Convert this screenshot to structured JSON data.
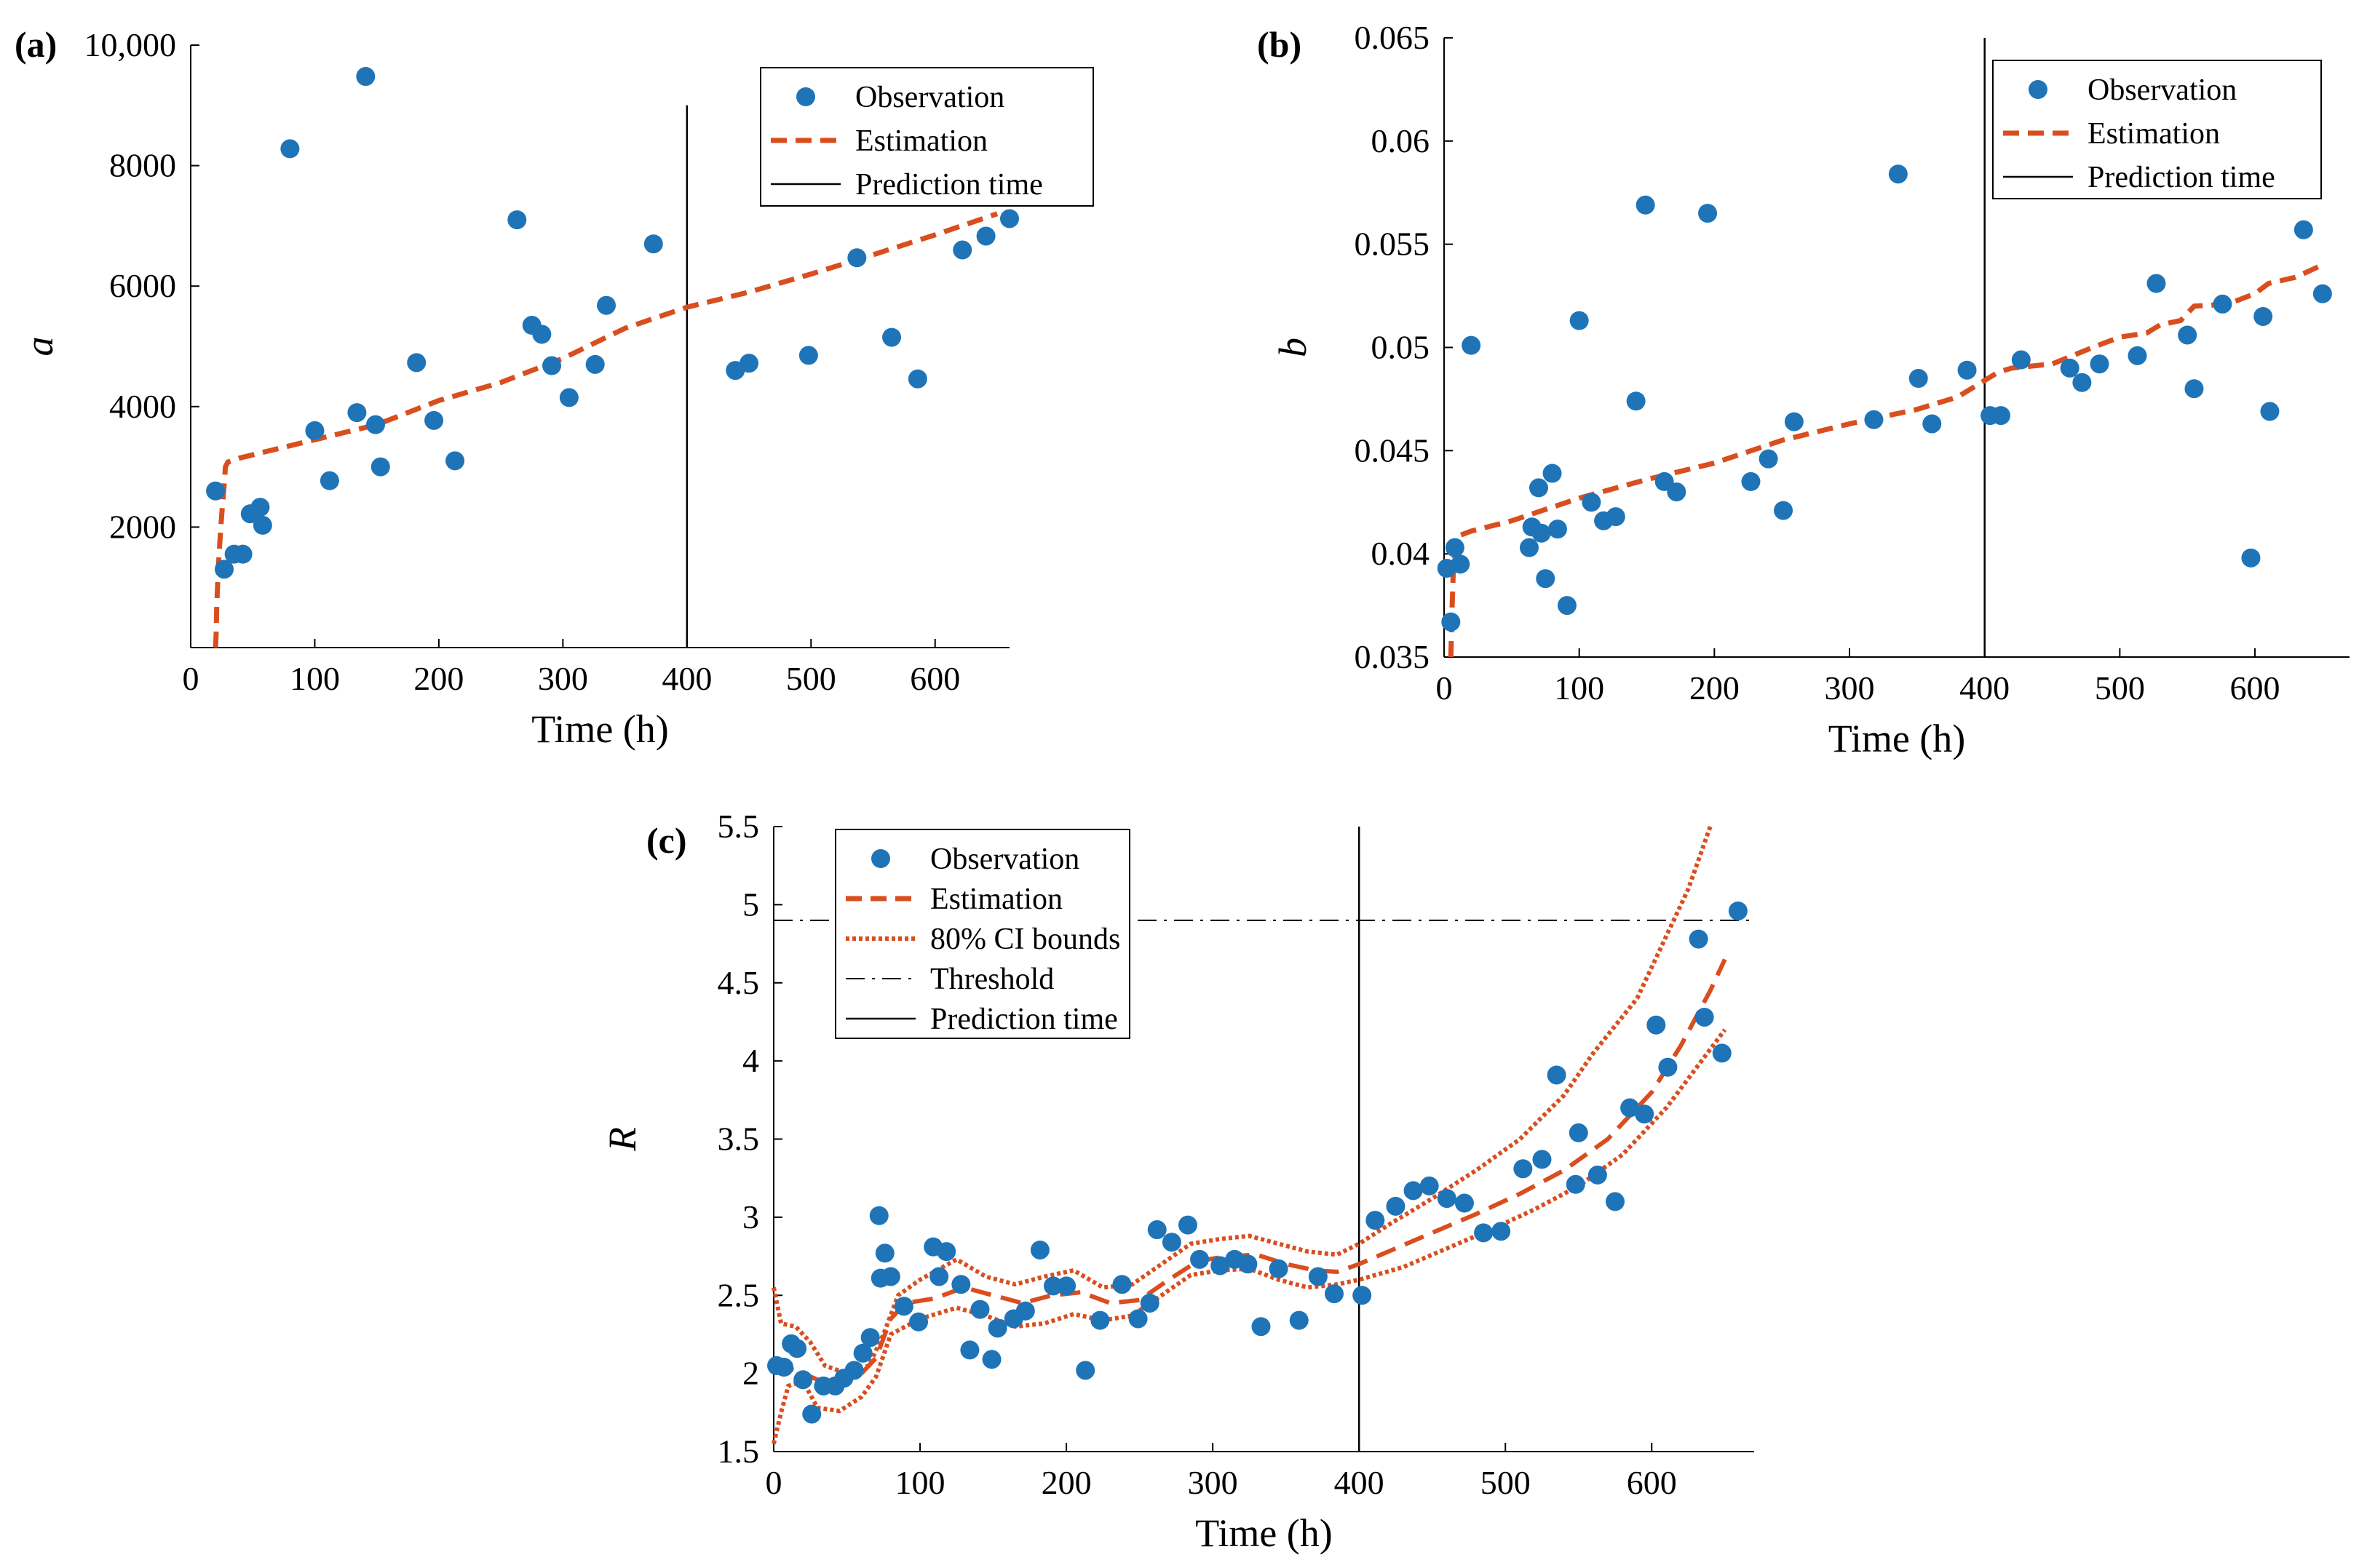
{
  "colors": {
    "observation": "#1f74b8",
    "estimation": "#d94e1f",
    "line": "#000000"
  },
  "chart_data": [
    {
      "panel": "(a)",
      "type": "scatter",
      "xlabel": "Time (h)",
      "ylabel": "a",
      "xlim": [
        0,
        660
      ],
      "ylim": [
        0,
        10000
      ],
      "xticks": [
        0,
        100,
        200,
        300,
        400,
        500,
        600
      ],
      "yticks": [
        2000,
        4000,
        6000,
        8000,
        10000
      ],
      "ytick_labels": [
        "2000",
        "4000",
        "6000",
        "8000",
        "10,000"
      ],
      "legend": [
        "Observation",
        "Estimation",
        "Prediction time"
      ],
      "prediction_time": 400,
      "prediction_line_top": 9000,
      "observations": [
        [
          20,
          2600
        ],
        [
          27,
          1300
        ],
        [
          35,
          1550
        ],
        [
          42,
          1550
        ],
        [
          48,
          2220
        ],
        [
          56,
          2330
        ],
        [
          58,
          2030
        ],
        [
          80,
          8280
        ],
        [
          100,
          3600
        ],
        [
          112,
          2770
        ],
        [
          134,
          3900
        ],
        [
          141,
          9480
        ],
        [
          149,
          3700
        ],
        [
          153,
          3000
        ],
        [
          182,
          4730
        ],
        [
          196,
          3770
        ],
        [
          213,
          3100
        ],
        [
          263,
          7100
        ],
        [
          275,
          5350
        ],
        [
          283,
          5200
        ],
        [
          291,
          4680
        ],
        [
          305,
          4150
        ],
        [
          326,
          4700
        ],
        [
          335,
          5680
        ],
        [
          373,
          6700
        ],
        [
          439,
          4600
        ],
        [
          450,
          4720
        ],
        [
          498,
          4850
        ],
        [
          537,
          6470
        ],
        [
          565,
          5150
        ],
        [
          586,
          4460
        ],
        [
          622,
          6600
        ],
        [
          641,
          6830
        ],
        [
          660,
          7120
        ]
      ],
      "estimation": [
        [
          20,
          0
        ],
        [
          20.5,
          200
        ],
        [
          21,
          700
        ],
        [
          22,
          1200
        ],
        [
          23,
          1600
        ],
        [
          25,
          2200
        ],
        [
          27,
          2700
        ],
        [
          28,
          3000
        ],
        [
          30,
          3080
        ],
        [
          40,
          3150
        ],
        [
          60,
          3250
        ],
        [
          80,
          3350
        ],
        [
          100,
          3450
        ],
        [
          150,
          3700
        ],
        [
          200,
          4100
        ],
        [
          250,
          4400
        ],
        [
          300,
          4800
        ],
        [
          350,
          5300
        ],
        [
          400,
          5650
        ],
        [
          450,
          5900
        ],
        [
          500,
          6200
        ],
        [
          550,
          6520
        ],
        [
          600,
          6850
        ],
        [
          650,
          7200
        ]
      ]
    },
    {
      "panel": "(b)",
      "type": "scatter",
      "xlabel": "Time (h)",
      "ylabel": "b",
      "xlim": [
        0,
        670
      ],
      "ylim": [
        0.035,
        0.065
      ],
      "xticks": [
        0,
        100,
        200,
        300,
        400,
        500,
        600
      ],
      "yticks": [
        0.035,
        0.04,
        0.045,
        0.05,
        0.055,
        0.06,
        0.065
      ],
      "ytick_labels": [
        "0.035",
        "0.04",
        "0.045",
        "0.05",
        "0.055",
        "0.06",
        "0.065"
      ],
      "legend": [
        "Observation",
        "Estimation",
        "Prediction time"
      ],
      "prediction_time": 400,
      "prediction_line_top": 0.065,
      "observations": [
        [
          2,
          0.0393
        ],
        [
          5,
          0.0367
        ],
        [
          8,
          0.0403
        ],
        [
          12,
          0.0395
        ],
        [
          20,
          0.0501
        ],
        [
          63,
          0.0403
        ],
        [
          65,
          0.0413
        ],
        [
          70,
          0.0432
        ],
        [
          72,
          0.041
        ],
        [
          75,
          0.0388
        ],
        [
          80,
          0.0439
        ],
        [
          84,
          0.0412
        ],
        [
          91,
          0.0375
        ],
        [
          100,
          0.0513
        ],
        [
          109,
          0.0425
        ],
        [
          118,
          0.0416
        ],
        [
          127,
          0.0418
        ],
        [
          142,
          0.0474
        ],
        [
          149,
          0.0569
        ],
        [
          163,
          0.0435
        ],
        [
          172,
          0.043
        ],
        [
          195,
          0.0565
        ],
        [
          227,
          0.0435
        ],
        [
          240,
          0.0446
        ],
        [
          251,
          0.0421
        ],
        [
          259,
          0.0464
        ],
        [
          318,
          0.0465
        ],
        [
          336,
          0.0584
        ],
        [
          351,
          0.0485
        ],
        [
          361,
          0.0463
        ],
        [
          387,
          0.0489
        ],
        [
          404,
          0.0467
        ],
        [
          412,
          0.0467
        ],
        [
          427,
          0.0494
        ],
        [
          463,
          0.049
        ],
        [
          472,
          0.0483
        ],
        [
          485,
          0.0492
        ],
        [
          513,
          0.0496
        ],
        [
          527,
          0.0531
        ],
        [
          550,
          0.0506
        ],
        [
          555,
          0.048
        ],
        [
          576,
          0.0521
        ],
        [
          597,
          0.0398
        ],
        [
          606,
          0.0515
        ],
        [
          611,
          0.0469
        ],
        [
          636,
          0.0557
        ],
        [
          650,
          0.0526
        ]
      ],
      "estimation": [
        [
          5,
          0.035
        ],
        [
          6,
          0.0375
        ],
        [
          7,
          0.0395
        ],
        [
          9,
          0.0405
        ],
        [
          12,
          0.0409
        ],
        [
          20,
          0.0411
        ],
        [
          50,
          0.0416
        ],
        [
          100,
          0.0427
        ],
        [
          150,
          0.0436
        ],
        [
          200,
          0.0444
        ],
        [
          250,
          0.0455
        ],
        [
          300,
          0.0463
        ],
        [
          350,
          0.047
        ],
        [
          380,
          0.0476
        ],
        [
          400,
          0.0484
        ],
        [
          410,
          0.0488
        ],
        [
          420,
          0.049
        ],
        [
          450,
          0.0492
        ],
        [
          480,
          0.05
        ],
        [
          500,
          0.0505
        ],
        [
          520,
          0.0507
        ],
        [
          530,
          0.0511
        ],
        [
          545,
          0.0513
        ],
        [
          555,
          0.052
        ],
        [
          580,
          0.0521
        ],
        [
          600,
          0.0526
        ],
        [
          610,
          0.0531
        ],
        [
          630,
          0.0534
        ],
        [
          650,
          0.054
        ]
      ]
    },
    {
      "panel": "(c)",
      "type": "scatter",
      "xlabel": "Time (h)",
      "ylabel": "R",
      "xlim": [
        0,
        670
      ],
      "ylim": [
        1.5,
        5.5
      ],
      "xticks": [
        0,
        100,
        200,
        300,
        400,
        500,
        600
      ],
      "yticks": [
        1.5,
        2,
        2.5,
        3,
        3.5,
        4,
        4.5,
        5,
        5.5
      ],
      "ytick_labels": [
        "1.5",
        "2",
        "2.5",
        "3",
        "3.5",
        "4",
        "4.5",
        "5",
        "5.5"
      ],
      "legend": [
        "Observation",
        "Estimation",
        "80% CI bounds",
        "Threshold",
        "Prediction time"
      ],
      "prediction_time": 400,
      "threshold": 4.9,
      "observations": [
        [
          2,
          2.05
        ],
        [
          7,
          2.04
        ],
        [
          12,
          2.19
        ],
        [
          16,
          2.16
        ],
        [
          20,
          1.96
        ],
        [
          26,
          1.74
        ],
        [
          34,
          1.92
        ],
        [
          42,
          1.92
        ],
        [
          48,
          1.97
        ],
        [
          55,
          2.02
        ],
        [
          61,
          2.13
        ],
        [
          66,
          2.23
        ],
        [
          72,
          3.01
        ],
        [
          73,
          2.61
        ],
        [
          76,
          2.77
        ],
        [
          80,
          2.62
        ],
        [
          89,
          2.43
        ],
        [
          99,
          2.33
        ],
        [
          109,
          2.81
        ],
        [
          113,
          2.62
        ],
        [
          118,
          2.78
        ],
        [
          128,
          2.57
        ],
        [
          134,
          2.15
        ],
        [
          141,
          2.41
        ],
        [
          149,
          2.09
        ],
        [
          153,
          2.29
        ],
        [
          164,
          2.35
        ],
        [
          172,
          2.4
        ],
        [
          182,
          2.79
        ],
        [
          191,
          2.56
        ],
        [
          200,
          2.56
        ],
        [
          213,
          2.02
        ],
        [
          223,
          2.34
        ],
        [
          238,
          2.57
        ],
        [
          249,
          2.35
        ],
        [
          257,
          2.45
        ],
        [
          262,
          2.92
        ],
        [
          272,
          2.84
        ],
        [
          283,
          2.95
        ],
        [
          291,
          2.73
        ],
        [
          305,
          2.69
        ],
        [
          315,
          2.73
        ],
        [
          324,
          2.7
        ],
        [
          333,
          2.3
        ],
        [
          345,
          2.67
        ],
        [
          359,
          2.34
        ],
        [
          372,
          2.62
        ],
        [
          383,
          2.51
        ],
        [
          402,
          2.5
        ],
        [
          411,
          2.98
        ],
        [
          425,
          3.07
        ],
        [
          437,
          3.17
        ],
        [
          448,
          3.2
        ],
        [
          460,
          3.12
        ],
        [
          472,
          3.09
        ],
        [
          485,
          2.9
        ],
        [
          497,
          2.91
        ],
        [
          512,
          3.31
        ],
        [
          525,
          3.37
        ],
        [
          535,
          3.91
        ],
        [
          548,
          3.21
        ],
        [
          550,
          3.54
        ],
        [
          563,
          3.27
        ],
        [
          575,
          3.1
        ],
        [
          585,
          3.7
        ],
        [
          595,
          3.66
        ],
        [
          603,
          4.23
        ],
        [
          611,
          3.96
        ],
        [
          632,
          4.78
        ],
        [
          636,
          4.28
        ],
        [
          648,
          4.05
        ],
        [
          659,
          4.96
        ]
      ],
      "estimation": [
        [
          0,
          2.05
        ],
        [
          15,
          2.02
        ],
        [
          30,
          1.96
        ],
        [
          45,
          1.95
        ],
        [
          60,
          2.0
        ],
        [
          70,
          2.1
        ],
        [
          80,
          2.35
        ],
        [
          90,
          2.45
        ],
        [
          110,
          2.48
        ],
        [
          130,
          2.55
        ],
        [
          150,
          2.5
        ],
        [
          170,
          2.45
        ],
        [
          190,
          2.5
        ],
        [
          210,
          2.52
        ],
        [
          230,
          2.45
        ],
        [
          250,
          2.47
        ],
        [
          270,
          2.6
        ],
        [
          290,
          2.72
        ],
        [
          310,
          2.75
        ],
        [
          330,
          2.76
        ],
        [
          350,
          2.7
        ],
        [
          370,
          2.66
        ],
        [
          385,
          2.65
        ],
        [
          400,
          2.7
        ],
        [
          420,
          2.78
        ],
        [
          450,
          2.9
        ],
        [
          480,
          3.02
        ],
        [
          510,
          3.15
        ],
        [
          540,
          3.3
        ],
        [
          570,
          3.5
        ],
        [
          600,
          3.8
        ],
        [
          620,
          4.1
        ],
        [
          640,
          4.45
        ],
        [
          650,
          4.65
        ]
      ],
      "ci_upper": [
        [
          0,
          2.55
        ],
        [
          5,
          2.32
        ],
        [
          15,
          2.3
        ],
        [
          25,
          2.2
        ],
        [
          35,
          2.05
        ],
        [
          50,
          2.0
        ],
        [
          65,
          2.05
        ],
        [
          75,
          2.25
        ],
        [
          85,
          2.5
        ],
        [
          100,
          2.6
        ],
        [
          125,
          2.73
        ],
        [
          145,
          2.62
        ],
        [
          165,
          2.57
        ],
        [
          185,
          2.62
        ],
        [
          205,
          2.66
        ],
        [
          225,
          2.55
        ],
        [
          245,
          2.57
        ],
        [
          265,
          2.7
        ],
        [
          285,
          2.83
        ],
        [
          305,
          2.86
        ],
        [
          325,
          2.88
        ],
        [
          345,
          2.83
        ],
        [
          365,
          2.78
        ],
        [
          385,
          2.76
        ],
        [
          400,
          2.83
        ],
        [
          420,
          2.95
        ],
        [
          450,
          3.12
        ],
        [
          480,
          3.3
        ],
        [
          510,
          3.5
        ],
        [
          540,
          3.78
        ],
        [
          560,
          4.05
        ],
        [
          590,
          4.4
        ],
        [
          610,
          4.8
        ],
        [
          625,
          5.1
        ],
        [
          640,
          5.5
        ]
      ],
      "ci_lower": [
        [
          0,
          1.55
        ],
        [
          5,
          1.75
        ],
        [
          10,
          1.92
        ],
        [
          20,
          1.95
        ],
        [
          30,
          1.78
        ],
        [
          45,
          1.76
        ],
        [
          60,
          1.85
        ],
        [
          70,
          1.98
        ],
        [
          80,
          2.25
        ],
        [
          100,
          2.35
        ],
        [
          125,
          2.42
        ],
        [
          145,
          2.37
        ],
        [
          165,
          2.3
        ],
        [
          185,
          2.32
        ],
        [
          205,
          2.38
        ],
        [
          225,
          2.34
        ],
        [
          245,
          2.37
        ],
        [
          265,
          2.5
        ],
        [
          285,
          2.63
        ],
        [
          305,
          2.66
        ],
        [
          325,
          2.67
        ],
        [
          345,
          2.6
        ],
        [
          365,
          2.55
        ],
        [
          385,
          2.57
        ],
        [
          400,
          2.6
        ],
        [
          430,
          2.68
        ],
        [
          460,
          2.8
        ],
        [
          490,
          2.92
        ],
        [
          520,
          3.05
        ],
        [
          550,
          3.2
        ],
        [
          580,
          3.4
        ],
        [
          610,
          3.7
        ],
        [
          630,
          3.95
        ],
        [
          650,
          4.2
        ]
      ]
    }
  ]
}
